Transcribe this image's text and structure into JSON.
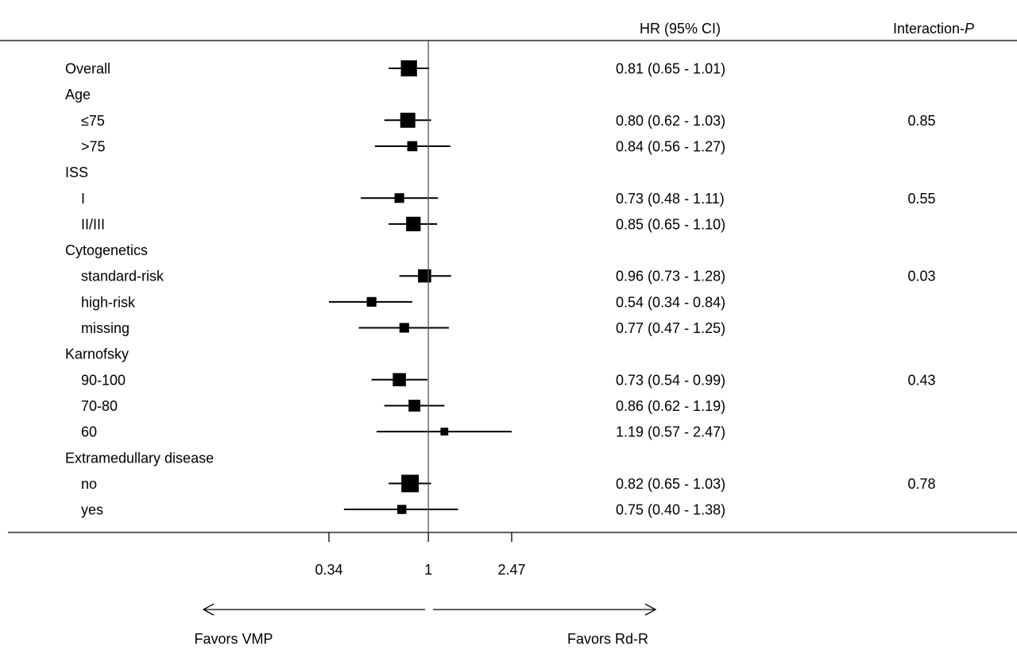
{
  "chart_data": {
    "type": "forest",
    "header": {
      "hr_col": "HR (95% CI)",
      "p_col_prefix": "Interaction-",
      "p_col_italic": "P"
    },
    "x_scale": "log",
    "xlim": [
      0.34,
      2.47
    ],
    "reference_line": 1,
    "ticks": [
      {
        "value": 0.34,
        "label": "0.34"
      },
      {
        "value": 1,
        "label": "1"
      },
      {
        "value": 2.47,
        "label": "2.47"
      }
    ],
    "favors_left": "Favors VMP",
    "favors_right": "Favors Rd-R",
    "rows": [
      {
        "label": "Overall",
        "level": 0,
        "hr": 0.81,
        "lo": 0.65,
        "hi": 1.01,
        "text": "0.81 (0.65 - 1.01)",
        "weight": 0.9,
        "p": ""
      },
      {
        "label": "Age",
        "level": 0
      },
      {
        "label": "≤75",
        "level": 1,
        "hr": 0.8,
        "lo": 0.62,
        "hi": 1.03,
        "text": "0.80 (0.62 - 1.03)",
        "weight": 0.82,
        "p": "0.85"
      },
      {
        "label": ">75",
        "level": 1,
        "hr": 0.84,
        "lo": 0.56,
        "hi": 1.27,
        "text": "0.84 (0.56 - 1.27)",
        "weight": 0.45,
        "p": ""
      },
      {
        "label": "ISS",
        "level": 0
      },
      {
        "label": "I",
        "level": 1,
        "hr": 0.73,
        "lo": 0.48,
        "hi": 1.11,
        "text": "0.73 (0.48 - 1.11)",
        "weight": 0.42,
        "p": "0.55"
      },
      {
        "label": "II/III",
        "level": 1,
        "hr": 0.85,
        "lo": 0.65,
        "hi": 1.1,
        "text": "0.85 (0.65 - 1.10)",
        "weight": 0.78,
        "p": ""
      },
      {
        "label": "Cytogenetics",
        "level": 0
      },
      {
        "label": "standard-risk",
        "level": 1,
        "hr": 0.96,
        "lo": 0.73,
        "hi": 1.28,
        "text": "0.96 (0.73 - 1.28)",
        "weight": 0.68,
        "p": "0.03"
      },
      {
        "label": "high-risk",
        "level": 1,
        "hr": 0.54,
        "lo": 0.34,
        "hi": 0.84,
        "text": "0.54 (0.34 - 0.84)",
        "weight": 0.42,
        "p": ""
      },
      {
        "label": "missing",
        "level": 1,
        "hr": 0.77,
        "lo": 0.47,
        "hi": 1.25,
        "text": "0.77 (0.47 - 1.25)",
        "weight": 0.42,
        "p": ""
      },
      {
        "label": "Karnofsky",
        "level": 0
      },
      {
        "label": "90-100",
        "level": 1,
        "hr": 0.73,
        "lo": 0.54,
        "hi": 0.99,
        "text": "0.73 (0.54 - 0.99)",
        "weight": 0.68,
        "p": "0.43"
      },
      {
        "label": "70-80",
        "level": 1,
        "hr": 0.86,
        "lo": 0.62,
        "hi": 1.19,
        "text": "0.86 (0.62 - 1.19)",
        "weight": 0.58,
        "p": ""
      },
      {
        "label": "60",
        "level": 1,
        "hr": 1.19,
        "lo": 0.57,
        "hi": 2.47,
        "text": "1.19 (0.57 - 2.47)",
        "weight": 0.28,
        "p": ""
      },
      {
        "label": "Extramedullary disease",
        "level": 0
      },
      {
        "label": "no",
        "level": 1,
        "hr": 0.82,
        "lo": 0.65,
        "hi": 1.03,
        "text": "0.82 (0.65 - 1.03)",
        "weight": 1.0,
        "p": "0.78"
      },
      {
        "label": "yes",
        "level": 1,
        "hr": 0.75,
        "lo": 0.4,
        "hi": 1.38,
        "text": "0.75 (0.40 - 1.38)",
        "weight": 0.38,
        "p": ""
      }
    ]
  }
}
